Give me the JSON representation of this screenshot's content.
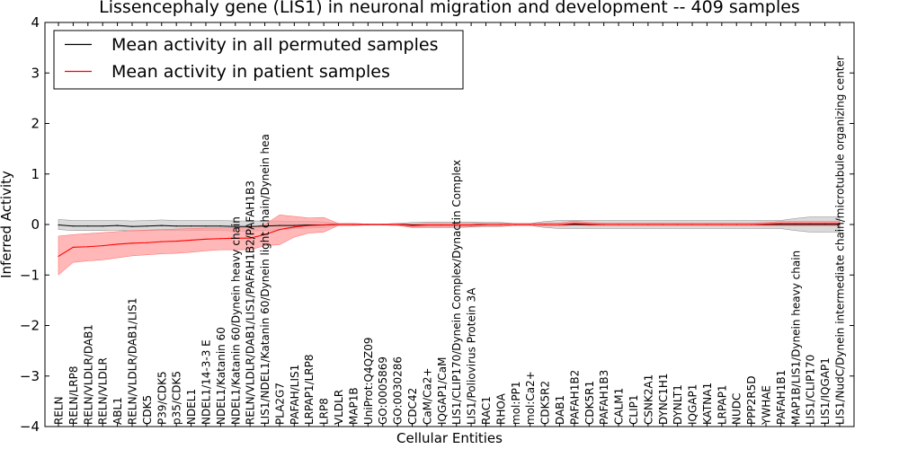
{
  "chart_data": {
    "type": "line",
    "title": "Lissencephaly gene (LIS1) in neuronal migration and development -- 409 samples",
    "xlabel": "Cellular Entities",
    "ylabel": "Inferred Activity",
    "ylim": [
      -4,
      4
    ],
    "yticks": [
      4,
      3,
      2,
      1,
      0,
      -1,
      -2,
      -3,
      -4
    ],
    "ytick_labels": [
      "4",
      "3",
      "2",
      "1",
      "0",
      "−1",
      "−2",
      "−3",
      "−4"
    ],
    "legend_position": "top-left",
    "categories": [
      "RELN",
      "RELN/LRP8",
      "RELN/VLDLR/DAB1",
      "RELN/VLDLR",
      "ABL1",
      "RELN/VLDLR/DAB1/LIS1",
      "CDK5",
      "P39/CDK5",
      "p35/CDK5",
      "NDEL1",
      "NDEL1/14-3-3 E",
      "NDEL1/Katanin 60",
      "NDEL1/Katanin 60/Dynein heavy chain",
      "RELN/VLDLR/DAB1/LIS1/PAFAH1B2/PAFAH1B3",
      "LIS1/NDEL1/Katanin 60/Dynein light chain/Dynein hea",
      "PLA2G7",
      "PAFAH/LIS1",
      "LRPAP1/LRP8",
      "LRP8",
      "VLDLR",
      "MAP1B",
      "UniProt:Q4QZ09",
      "GO:0005869",
      "GO:0030286",
      "CDC42",
      "CaM/Ca2+",
      "IQGAP1/CaM",
      "LIS1/CLIP170/Dynein Complex/Dynactin Complex",
      "LIS1/Poliovirus Protein 3A",
      "RAC1",
      "RHOA",
      "mol:PP1",
      "mol:Ca2+",
      "CDK5R2",
      "DAB1",
      "PAFAH1B2",
      "CDK5R1",
      "PAFAH1B3",
      "CALM1",
      "CLIP1",
      "CSNK2A1",
      "DYNC1H1",
      "DYNLT1",
      "IQGAP1",
      "KATNA1",
      "LRPAP1",
      "NUDC",
      "PPP2R5D",
      "YWHAE",
      "PAFAH1B1",
      "MAP1B/LIS1/Dynein heavy chain",
      "LIS1/CLIP170",
      "LIS1/IQGAP1",
      "LIS1/NudC/Dynein intermediate chain/microtubule organizing center"
    ],
    "series": [
      {
        "name": "Mean activity in all permuted samples",
        "color": "#000000",
        "values": [
          -0.01,
          -0.03,
          -0.03,
          -0.03,
          -0.02,
          -0.04,
          -0.03,
          -0.02,
          -0.03,
          -0.03,
          -0.03,
          -0.03,
          -0.04,
          -0.04,
          -0.03,
          -0.02,
          -0.02,
          -0.01,
          -0.01,
          0.0,
          0.0,
          0.0,
          0.0,
          0.0,
          -0.01,
          -0.01,
          -0.01,
          -0.01,
          -0.01,
          0.0,
          0.0,
          0.0,
          0.0,
          0.0,
          0.0,
          0.0,
          0.0,
          0.0,
          0.0,
          0.0,
          0.0,
          0.0,
          0.0,
          0.0,
          0.0,
          0.0,
          0.0,
          0.0,
          0.0,
          0.0,
          0.0,
          0.0,
          0.0,
          0.0
        ],
        "band_lower": [
          -0.1,
          -0.12,
          -0.12,
          -0.12,
          -0.11,
          -0.13,
          -0.12,
          -0.12,
          -0.12,
          -0.12,
          -0.12,
          -0.12,
          -0.13,
          -0.13,
          -0.12,
          -0.1,
          -0.08,
          -0.07,
          -0.06,
          -0.02,
          -0.02,
          -0.01,
          -0.01,
          -0.02,
          -0.06,
          -0.06,
          -0.06,
          -0.06,
          -0.05,
          -0.04,
          -0.04,
          -0.02,
          -0.02,
          -0.06,
          -0.08,
          -0.08,
          -0.08,
          -0.08,
          -0.08,
          -0.08,
          -0.08,
          -0.08,
          -0.08,
          -0.08,
          -0.08,
          -0.08,
          -0.08,
          -0.08,
          -0.08,
          -0.08,
          -0.12,
          -0.15,
          -0.15,
          -0.15
        ],
        "band_upper": [
          0.1,
          0.08,
          0.08,
          0.08,
          0.08,
          0.07,
          0.08,
          0.09,
          0.08,
          0.08,
          0.08,
          0.08,
          0.07,
          0.07,
          0.07,
          0.07,
          0.06,
          0.06,
          0.05,
          0.02,
          0.02,
          0.01,
          0.01,
          0.02,
          0.04,
          0.05,
          0.05,
          0.05,
          0.05,
          0.04,
          0.04,
          0.02,
          0.02,
          0.06,
          0.08,
          0.08,
          0.08,
          0.08,
          0.08,
          0.08,
          0.08,
          0.08,
          0.08,
          0.08,
          0.08,
          0.08,
          0.08,
          0.08,
          0.08,
          0.08,
          0.12,
          0.15,
          0.15,
          0.15
        ]
      },
      {
        "name": "Mean activity in patient samples",
        "color": "#ff0000",
        "band_color": "#ff9999",
        "values": [
          -0.63,
          -0.45,
          -0.44,
          -0.42,
          -0.39,
          -0.37,
          -0.36,
          -0.34,
          -0.33,
          -0.31,
          -0.29,
          -0.28,
          -0.27,
          -0.27,
          -0.2,
          -0.1,
          -0.05,
          -0.02,
          -0.01,
          0.0,
          0.0,
          0.0,
          0.0,
          0.0,
          -0.02,
          -0.01,
          -0.01,
          -0.01,
          -0.01,
          0.0,
          0.0,
          0.0,
          0.0,
          0.0,
          0.0,
          0.02,
          0.01,
          0.0,
          0.0,
          0.0,
          0.0,
          0.0,
          0.0,
          0.0,
          0.0,
          0.0,
          0.0,
          0.0,
          0.01,
          0.02,
          0.02,
          0.02,
          0.02,
          0.02
        ],
        "band_lower": [
          -1.0,
          -0.75,
          -0.72,
          -0.7,
          -0.66,
          -0.62,
          -0.6,
          -0.58,
          -0.57,
          -0.55,
          -0.52,
          -0.5,
          -0.5,
          -0.5,
          -0.42,
          -0.4,
          -0.25,
          -0.17,
          -0.15,
          -0.02,
          -0.02,
          -0.01,
          -0.01,
          -0.02,
          -0.05,
          -0.04,
          -0.04,
          -0.04,
          -0.04,
          -0.03,
          -0.03,
          -0.02,
          -0.02,
          -0.03,
          -0.03,
          -0.01,
          -0.02,
          -0.02,
          -0.02,
          -0.02,
          -0.02,
          -0.02,
          -0.02,
          -0.02,
          -0.02,
          -0.02,
          -0.02,
          -0.02,
          -0.02,
          -0.02,
          -0.02,
          -0.02,
          -0.02,
          -0.02
        ],
        "band_upper": [
          -0.23,
          -0.2,
          -0.18,
          -0.16,
          -0.14,
          -0.12,
          -0.11,
          -0.1,
          -0.09,
          -0.08,
          -0.07,
          -0.07,
          -0.06,
          -0.06,
          0.0,
          0.19,
          0.16,
          0.13,
          0.14,
          0.02,
          0.02,
          0.01,
          0.01,
          0.02,
          0.01,
          0.02,
          0.02,
          0.02,
          0.02,
          0.02,
          0.02,
          0.02,
          0.02,
          0.03,
          0.03,
          0.07,
          0.04,
          0.03,
          0.03,
          0.03,
          0.03,
          0.03,
          0.03,
          0.03,
          0.03,
          0.03,
          0.03,
          0.03,
          0.04,
          0.06,
          0.06,
          0.06,
          0.06,
          0.06
        ]
      }
    ]
  }
}
